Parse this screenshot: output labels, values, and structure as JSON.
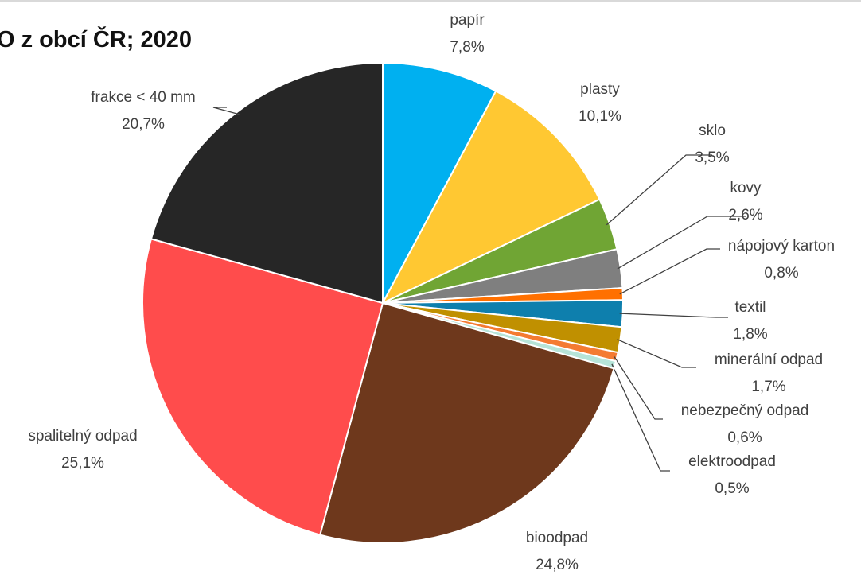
{
  "chart_data": {
    "type": "pie",
    "title": "O z obcí ČR; 2020",
    "slices": [
      {
        "name": "papír",
        "value": 7.8,
        "label": "7,8%",
        "color": "#00b0f0"
      },
      {
        "name": "plasty",
        "value": 10.1,
        "label": "10,1%",
        "color": "#ffc832"
      },
      {
        "name": "sklo",
        "value": 3.5,
        "label": "3,5%",
        "color": "#70a534"
      },
      {
        "name": "kovy",
        "value": 2.6,
        "label": "2,6%",
        "color": "#7f7f7f"
      },
      {
        "name": "nápojový karton",
        "value": 0.8,
        "label": "0,8%",
        "color": "#ff7000"
      },
      {
        "name": "textil",
        "value": 1.8,
        "label": "1,8%",
        "color": "#0e7fad"
      },
      {
        "name": "minerální odpad",
        "value": 1.7,
        "label": "1,7%",
        "color": "#c09000"
      },
      {
        "name": "nebezpečný odpad",
        "value": 0.6,
        "label": "0,6%",
        "color": "#f47b32"
      },
      {
        "name": "elektroodpad",
        "value": 0.5,
        "label": "0,5%",
        "color": "#b6e4d8"
      },
      {
        "name": "bioodpad",
        "value": 24.8,
        "label": "24,8%",
        "color": "#6e381c"
      },
      {
        "name": "spalitelný odpad",
        "value": 25.1,
        "label": "25,1%",
        "color": "#ff4c4c"
      },
      {
        "name": "frakce < 40 mm",
        "value": 20.7,
        "label": "20,7%",
        "color": "#262626"
      }
    ]
  }
}
